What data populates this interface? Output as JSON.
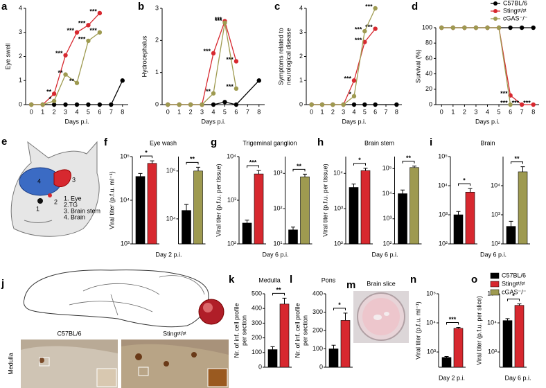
{
  "chart_data": [
    {
      "type": "line",
      "panel": "a",
      "ylabel": "Eye swell",
      "xlabel": "Days p.i.",
      "xlim": [
        -0.5,
        8.5
      ],
      "xticks": [
        0,
        1,
        2,
        3,
        4,
        5,
        6,
        7,
        8
      ],
      "ylim": [
        0,
        4
      ],
      "yticks": [
        0,
        1,
        2,
        3,
        4
      ],
      "series": [
        {
          "color": "#000000",
          "x": [
            0,
            1,
            2,
            3,
            4,
            5,
            6,
            7,
            8
          ],
          "values": [
            0,
            0,
            0,
            0,
            0,
            0,
            0,
            0,
            1.0
          ],
          "stars": [
            null,
            null,
            null,
            null,
            null,
            null,
            null,
            null,
            null
          ]
        },
        {
          "color": "#d7282f",
          "x": [
            0,
            1,
            2,
            3,
            4,
            5,
            6
          ],
          "values": [
            0,
            0,
            0.45,
            2.05,
            3.0,
            3.3,
            3.8
          ],
          "stars": [
            null,
            null,
            "**",
            "***",
            "***",
            "***",
            "***"
          ]
        },
        {
          "color": "#9e9a50",
          "x": [
            0,
            1,
            2,
            3,
            4,
            5,
            6
          ],
          "values": [
            0,
            0,
            0.15,
            1.25,
            0.9,
            2.65,
            3.0
          ],
          "stars": [
            null,
            null,
            "*",
            "**",
            "**",
            "***",
            "***"
          ]
        }
      ]
    },
    {
      "type": "line",
      "panel": "b",
      "ylabel": "Hydrocephalus",
      "xlabel": "Days p.i.",
      "xlim": [
        -0.5,
        8.5
      ],
      "xticks": [
        0,
        1,
        2,
        3,
        4,
        5,
        6,
        7,
        8
      ],
      "ylim": [
        0,
        3
      ],
      "yticks": [
        0,
        1,
        2,
        3
      ],
      "series": [
        {
          "color": "#000000",
          "x": [
            0,
            1,
            2,
            3,
            4,
            5,
            6,
            8
          ],
          "values": [
            0,
            0,
            0,
            0,
            0,
            0.08,
            0,
            0.75
          ],
          "stars": [
            null,
            null,
            null,
            null,
            null,
            null,
            null,
            null
          ]
        },
        {
          "color": "#d7282f",
          "x": [
            0,
            1,
            2,
            3,
            4,
            5,
            6
          ],
          "values": [
            0,
            0,
            0,
            0,
            1.6,
            2.6,
            1.35
          ],
          "stars": [
            null,
            null,
            null,
            null,
            "***",
            "***",
            "***"
          ]
        },
        {
          "color": "#9e9a50",
          "x": [
            0,
            1,
            2,
            3,
            4,
            5,
            6
          ],
          "values": [
            0,
            0,
            0,
            0,
            0.35,
            2.55,
            0.5
          ],
          "stars": [
            null,
            null,
            null,
            null,
            "**",
            "***",
            "***"
          ]
        }
      ]
    },
    {
      "type": "line",
      "panel": "c",
      "ylabel": [
        "Symptoms related to",
        "neurological disease"
      ],
      "xlabel": "Days p.i.",
      "xlim": [
        -0.5,
        8.5
      ],
      "xticks": [
        0,
        1,
        2,
        3,
        4,
        5,
        6,
        7,
        8
      ],
      "ylim": [
        0,
        4
      ],
      "yticks": [
        0,
        1,
        2,
        3,
        4
      ],
      "series": [
        {
          "color": "#000000",
          "x": [
            0,
            1,
            2,
            3,
            4,
            5,
            6,
            8
          ],
          "values": [
            0,
            0,
            0,
            0,
            0,
            0,
            0,
            0
          ],
          "stars": [
            null,
            null,
            null,
            null,
            null,
            null,
            null,
            null
          ]
        },
        {
          "color": "#d7282f",
          "x": [
            0,
            1,
            2,
            3,
            4,
            5,
            6
          ],
          "values": [
            0,
            0,
            0,
            0,
            1.0,
            2.6,
            3.15
          ],
          "stars": [
            null,
            null,
            null,
            null,
            "***",
            "***",
            "***"
          ]
        },
        {
          "color": "#9e9a50",
          "x": [
            0,
            1,
            2,
            3,
            4,
            5,
            6
          ],
          "values": [
            0,
            0,
            0,
            0,
            0.35,
            3.05,
            4.0
          ],
          "stars": [
            null,
            null,
            null,
            null,
            "*",
            "***",
            "***"
          ]
        }
      ]
    },
    {
      "type": "line",
      "panel": "d",
      "ylabel": "Survival (%)",
      "xlabel": "Days p.i.",
      "xlim": [
        -0.5,
        8.5
      ],
      "xticks": [
        0,
        1,
        2,
        3,
        4,
        5,
        6,
        7,
        8
      ],
      "ylim": [
        0,
        100
      ],
      "yticks": [
        0,
        20,
        40,
        60,
        80,
        100
      ],
      "series": [
        {
          "name": "C57BL/6",
          "color": "#000000",
          "x": [
            0,
            1,
            2,
            3,
            4,
            5,
            6,
            7,
            8
          ],
          "values": [
            100,
            100,
            100,
            100,
            100,
            100,
            100,
            100,
            100
          ],
          "stars": [
            null,
            null,
            null,
            null,
            null,
            null,
            null,
            null,
            null
          ]
        },
        {
          "name": "Stingᵍᵗ/ᵍᵗ",
          "color": "#d7282f",
          "x": [
            0,
            1,
            2,
            3,
            4,
            5,
            6,
            7,
            8
          ],
          "values": [
            100,
            100,
            100,
            100,
            100,
            100,
            12,
            0,
            0
          ],
          "stars": [
            null,
            null,
            null,
            null,
            null,
            null,
            "***",
            "***",
            "***"
          ]
        },
        {
          "name": "cGAS⁻/⁻",
          "color": "#9e9a50",
          "x": [
            0,
            1,
            2,
            3,
            4,
            5,
            6
          ],
          "values": [
            100,
            100,
            100,
            100,
            100,
            100,
            0
          ],
          "stars": [
            null,
            null,
            null,
            null,
            null,
            null,
            "***"
          ]
        }
      ]
    },
    {
      "type": "bar",
      "panel": "f",
      "title": "Eye wash",
      "ylabel": "Viral titer (p.f.u. ml⁻¹)",
      "xlabel": "Day 2 p.i.",
      "subplots": [
        {
          "log": true,
          "ylim": [
            1000,
            100000
          ],
          "yticks": [
            {
              "value": 1000,
              "label": "10³"
            },
            {
              "value": 10000,
              "label": "10⁴"
            },
            {
              "value": 100000,
              "label": "10⁵"
            }
          ],
          "values": [
            35000,
            70000
          ],
          "errors": [
            6000,
            10000
          ],
          "colors": [
            "#000000",
            "#d7282f"
          ],
          "significance": "*"
        },
        {
          "log": true,
          "ylim": [
            3000,
            200000
          ],
          "yticks": [
            {
              "value": 10000,
              "label": "10⁴"
            },
            {
              "value": 100000,
              "label": "10⁵"
            }
          ],
          "values": [
            15000,
            100000
          ],
          "errors": [
            5000,
            20000
          ],
          "colors": [
            "#000000",
            "#9e9a50"
          ],
          "significance": "**"
        }
      ]
    },
    {
      "type": "bar",
      "panel": "g",
      "title": "Trigeminal ganglion",
      "ylabel": "Viral titer (p.f.u. per tissue)",
      "xlabel": "Day 6 p.i.",
      "subplots": [
        {
          "log": true,
          "ylim": [
            100,
            10000
          ],
          "yticks": [
            {
              "value": 100,
              "label": "10²"
            },
            {
              "value": 1000,
              "label": "10³"
            },
            {
              "value": 10000,
              "label": "10⁴"
            }
          ],
          "values": [
            300,
            4000
          ],
          "errors": [
            50,
            800
          ],
          "colors": [
            "#000000",
            "#d7282f"
          ],
          "significance": "***"
        },
        {
          "log": true,
          "ylim": [
            10,
            3000
          ],
          "yticks": [
            {
              "value": 10,
              "label": "10¹"
            },
            {
              "value": 100,
              "label": "10²"
            },
            {
              "value": 1000,
              "label": "10³"
            }
          ],
          "values": [
            25,
            800
          ],
          "errors": [
            5,
            150
          ],
          "colors": [
            "#000000",
            "#9e9a50"
          ],
          "significance": "**"
        }
      ]
    },
    {
      "type": "bar",
      "panel": "h",
      "title": "Brain stem",
      "ylabel": "Viral titer (p.f.u. per tissue)",
      "xlabel": "Day 6 p.i.",
      "subplots": [
        {
          "log": true,
          "ylim": [
            100,
            30000
          ],
          "yticks": [
            {
              "value": 100,
              "label": "10²"
            },
            {
              "value": 1000,
              "label": "10³"
            },
            {
              "value": 10000,
              "label": "10⁴"
            }
          ],
          "values": [
            4000,
            12000
          ],
          "errors": [
            1000,
            2000
          ],
          "colors": [
            "#000000",
            "#d7282f"
          ],
          "significance": "*"
        },
        {
          "log": true,
          "ylim": [
            100,
            300000
          ],
          "yticks": [
            {
              "value": 100,
              "label": "10²"
            },
            {
              "value": 1000,
              "label": "10³"
            },
            {
              "value": 10000,
              "label": "10⁴"
            },
            {
              "value": 100000,
              "label": "10⁵"
            }
          ],
          "values": [
            10000,
            110000
          ],
          "errors": [
            4000,
            15000
          ],
          "colors": [
            "#000000",
            "#9e9a50"
          ],
          "significance": "**"
        }
      ]
    },
    {
      "type": "bar",
      "panel": "i",
      "title": "Brain",
      "xlabel": "Day 6 p.i.",
      "subplots": [
        {
          "log": true,
          "ylim": [
            100,
            100000
          ],
          "yticks": [
            {
              "value": 100,
              "label": "10²"
            },
            {
              "value": 1000,
              "label": "10³"
            },
            {
              "value": 10000,
              "label": "10⁴"
            },
            {
              "value": 100000,
              "label": "10⁵"
            }
          ],
          "values": [
            1000,
            6000
          ],
          "errors": [
            300,
            2000
          ],
          "colors": [
            "#000000",
            "#d7282f"
          ],
          "significance": "*"
        },
        {
          "log": true,
          "ylim": [
            100,
            100000
          ],
          "yticks": [
            {
              "value": 100,
              "label": "10²"
            },
            {
              "value": 1000,
              "label": "10³"
            },
            {
              "value": 10000,
              "label": "10⁴"
            }
          ],
          "values": [
            400,
            30000
          ],
          "errors": [
            200,
            15000
          ],
          "colors": [
            "#000000",
            "#9e9a50"
          ],
          "significance": "**"
        }
      ]
    },
    {
      "type": "bar",
      "panel": "k",
      "title": "Medulla",
      "ylabel": [
        "Nr. of inf. cell profile",
        "per section"
      ],
      "subplots": [
        {
          "log": false,
          "ylim": [
            0,
            500
          ],
          "yticks": [
            0,
            100,
            200,
            300,
            400,
            500
          ],
          "values": [
            120,
            430
          ],
          "errors": [
            20,
            40
          ],
          "colors": [
            "#000000",
            "#d7282f"
          ],
          "significance": "**"
        }
      ]
    },
    {
      "type": "bar",
      "panel": "l",
      "title": "Pons",
      "ylabel": [
        "Nr. of inf. cell profile",
        "per section"
      ],
      "subplots": [
        {
          "log": false,
          "ylim": [
            0,
            400
          ],
          "yticks": [
            0,
            100,
            200,
            300,
            400
          ],
          "values": [
            100,
            255
          ],
          "errors": [
            20,
            40
          ],
          "colors": [
            "#000000",
            "#d7282f"
          ],
          "significance": "*"
        }
      ]
    },
    {
      "type": "bar",
      "panel": "n",
      "ylabel": "Viral titer (p.f.u. ml⁻¹)",
      "xlabel": "Day 2 p.i.",
      "subplots": [
        {
          "log": true,
          "ylim": [
            300,
            100000
          ],
          "yticks": [
            {
              "value": 1000,
              "label": "10³"
            },
            {
              "value": 10000,
              "label": "10⁴"
            },
            {
              "value": 100000,
              "label": "10⁵"
            }
          ],
          "values": [
            650,
            6500
          ],
          "errors": [
            50,
            500
          ],
          "colors": [
            "#000000",
            "#d7282f"
          ],
          "significance": "***"
        }
      ]
    },
    {
      "type": "bar",
      "panel": "o",
      "ylabel": "Viral titer (p.f.u. per slice)",
      "xlabel": "Day 6 p.i.",
      "subplots": [
        {
          "log": true,
          "ylim": [
            300,
            100000
          ],
          "yticks": [
            {
              "value": 1000,
              "label": "10³"
            },
            {
              "value": 10000,
              "label": "10⁴"
            },
            {
              "value": 100000,
              "label": "10⁵"
            }
          ],
          "values": [
            12000,
            40000
          ],
          "errors": [
            2000,
            5000
          ],
          "colors": [
            "#000000",
            "#d7282f"
          ],
          "significance": "*"
        }
      ]
    }
  ],
  "legend": {
    "entries": [
      {
        "name": "C57BL/6",
        "color": "#000000"
      },
      {
        "name": "Stingᵍᵗ/ᵍᵗ",
        "color": "#d7282f"
      },
      {
        "name": "cGAS⁻/⁻",
        "color": "#9e9a50"
      }
    ]
  },
  "panel_e": {
    "panel": "e",
    "region_numbers": [
      "1",
      "2",
      "3",
      "4"
    ],
    "items": [
      "1. Eye",
      "2.TG",
      "3. Brain stem",
      "4. Brain"
    ]
  },
  "panel_j": {
    "panel": "j",
    "strains": [
      "C57BL/6",
      "Stingᵍᵗ/ᵍᵗ"
    ],
    "region": "Medulla"
  },
  "panel_m": {
    "panel": "m",
    "title": "Brain slice"
  }
}
